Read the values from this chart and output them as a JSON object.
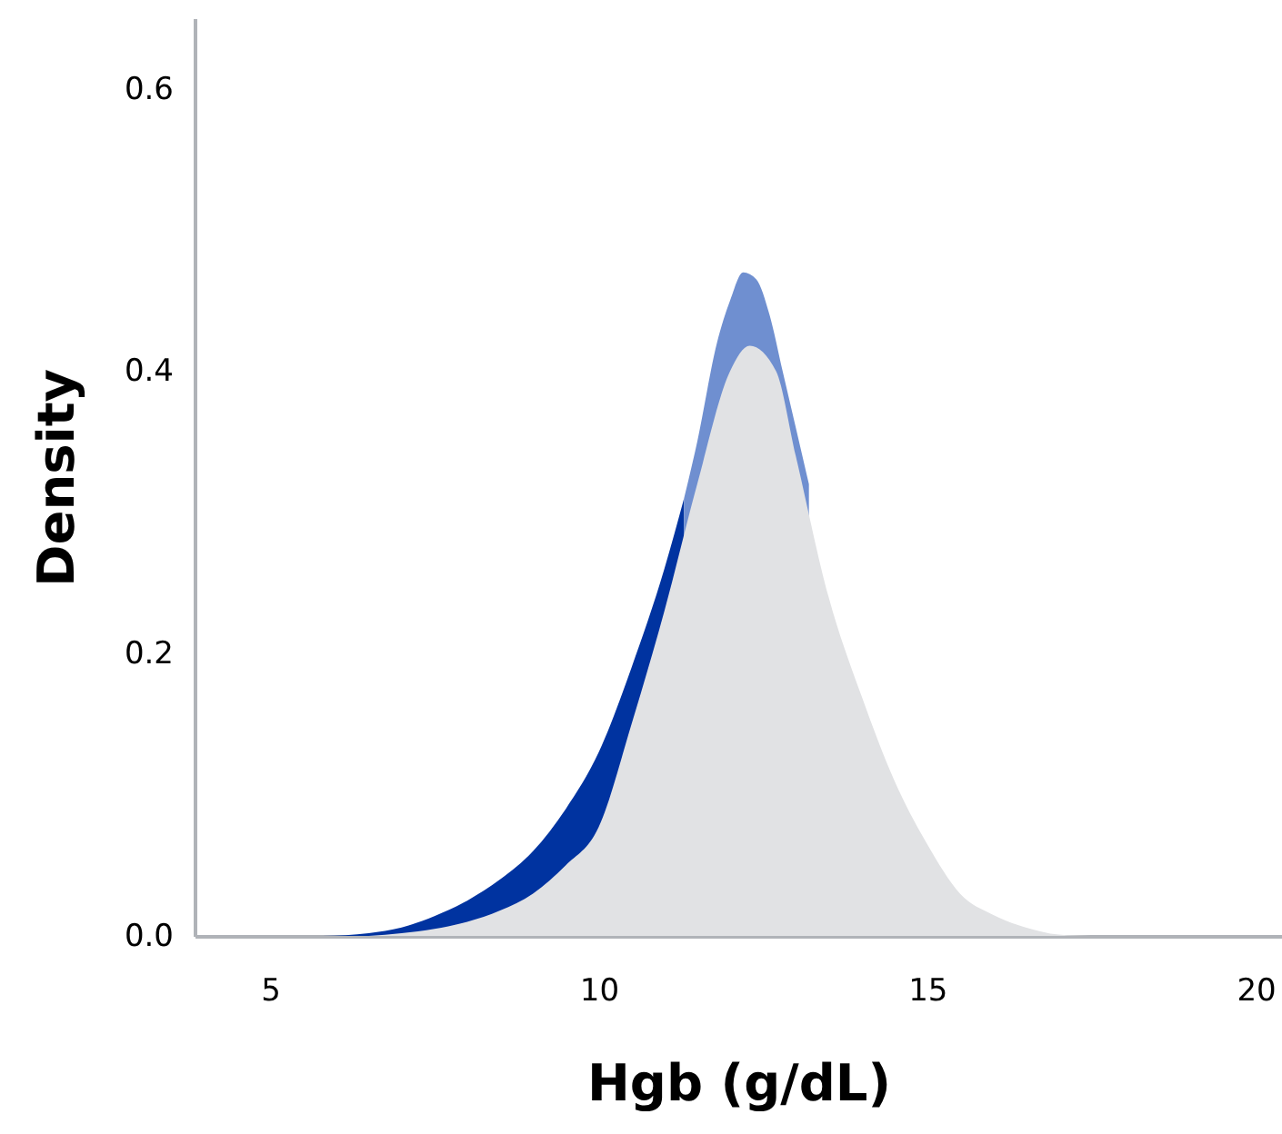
{
  "chart_data": {
    "type": "area",
    "xlabel": "Hgb (g/dL)",
    "ylabel": "Density",
    "xlim": [
      3.85,
      20.4
    ],
    "ylim": [
      0,
      0.65
    ],
    "xticks": [
      5,
      10,
      15,
      20
    ],
    "yticks": [
      {
        "value": 0,
        "label": "0.0"
      },
      {
        "value": 0.2,
        "label": "0.2"
      },
      {
        "value": 0.4,
        "label": "0.4"
      },
      {
        "value": 0.6,
        "label": "0.6"
      }
    ],
    "grid": false,
    "series": [
      {
        "color": "#0033a0",
        "x": [
          5.8,
          6.5,
          7,
          7.5,
          8,
          8.5,
          9,
          9.5,
          10,
          10.5,
          11,
          11.3
        ],
        "values": [
          0,
          0.002,
          0.006,
          0.014,
          0.025,
          0.04,
          0.06,
          0.09,
          0.13,
          0.19,
          0.26,
          0.31
        ]
      },
      {
        "color": "#6f8fd0",
        "x": [
          11.3,
          11.5,
          11.8,
          12,
          12.2,
          12.4,
          12.6,
          12.8,
          13,
          13.2
        ],
        "values": [
          0.31,
          0.35,
          0.42,
          0.45,
          0.47,
          0.465,
          0.44,
          0.4,
          0.36,
          0.32
        ]
      },
      {
        "color": "#e1e2e4",
        "x": [
          6.5,
          7,
          7.5,
          8,
          8.5,
          9,
          9.5,
          10,
          10.5,
          11,
          11.5,
          12,
          12.3,
          12.7,
          13,
          13.5,
          14,
          14.5,
          15,
          15.5,
          16,
          16.5,
          17,
          17.5
        ],
        "values": [
          0,
          0.002,
          0.005,
          0.01,
          0.018,
          0.03,
          0.05,
          0.077,
          0.15,
          0.23,
          0.32,
          0.4,
          0.418,
          0.4,
          0.34,
          0.24,
          0.17,
          0.11,
          0.065,
          0.03,
          0.015,
          0.006,
          0.001,
          0
        ]
      }
    ]
  }
}
